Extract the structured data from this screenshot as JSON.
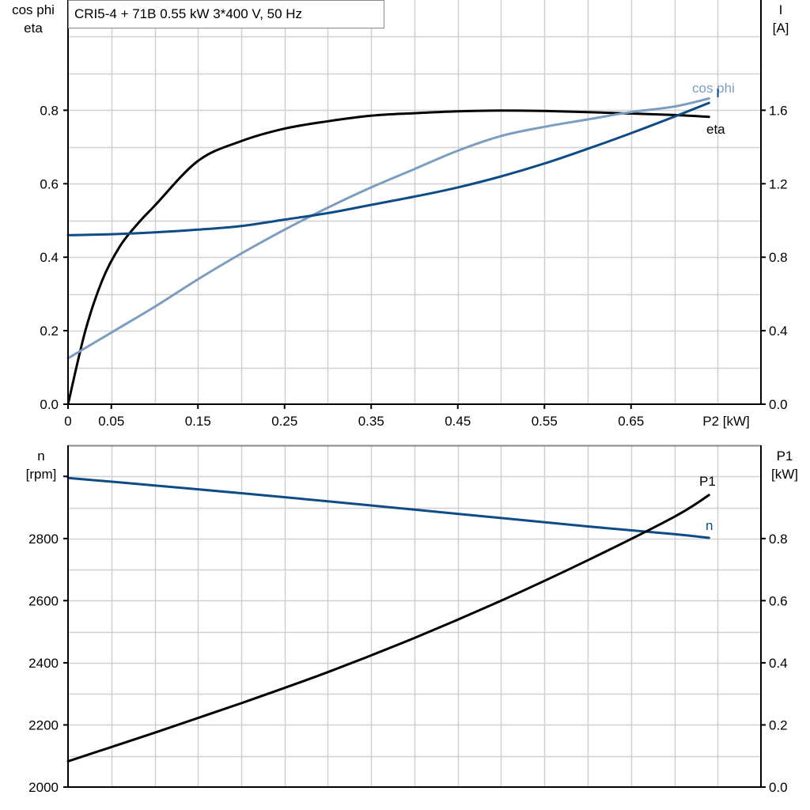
{
  "title": "CRI5-4 + 71B   0.55 kW   3*400 V, 50 Hz",
  "colors": {
    "eta": "#000000",
    "cos_phi": "#7a9dc0",
    "current": "#0d4c86",
    "n": "#0d4c86",
    "p1": "#000000",
    "grid": "#d0d0d0"
  },
  "chart_data": [
    {
      "type": "line",
      "xlabel": "P2 [kW]",
      "x_tick_labels": [
        "0",
        "0.05",
        "0.15",
        "0.25",
        "0.35",
        "0.45",
        "0.55",
        "0.65"
      ],
      "x_ticks": [
        0,
        0.05,
        0.15,
        0.25,
        0.35,
        0.45,
        0.55,
        0.65
      ],
      "xlim": [
        0,
        0.8
      ],
      "grid": true,
      "ylabel_left": [
        "cos phi",
        "eta"
      ],
      "ylim_left": [
        0,
        1.1
      ],
      "y_ticks_left": [
        "0.0",
        "0.2",
        "0.4",
        "0.6",
        "0.8"
      ],
      "ylabel_right": [
        "I",
        "[A]"
      ],
      "ylim_right": [
        0,
        2.2
      ],
      "y_ticks_right": [
        "0.0",
        "0.4",
        "0.8",
        "1.2",
        "1.6"
      ],
      "series": [
        {
          "name": "eta",
          "axis": "left",
          "x": [
            0,
            0.02,
            0.04,
            0.06,
            0.08,
            0.1,
            0.15,
            0.2,
            0.25,
            0.3,
            0.35,
            0.4,
            0.45,
            0.5,
            0.55,
            0.6,
            0.65,
            0.7,
            0.74
          ],
          "y": [
            0,
            0.2,
            0.34,
            0.43,
            0.49,
            0.54,
            0.662,
            0.716,
            0.75,
            0.77,
            0.785,
            0.792,
            0.797,
            0.799,
            0.798,
            0.795,
            0.791,
            0.787,
            0.782
          ]
        },
        {
          "name": "cos phi",
          "axis": "left",
          "x": [
            0,
            0.05,
            0.1,
            0.15,
            0.2,
            0.25,
            0.3,
            0.35,
            0.4,
            0.45,
            0.5,
            0.55,
            0.6,
            0.65,
            0.7,
            0.74
          ],
          "y": [
            0.125,
            0.195,
            0.265,
            0.34,
            0.41,
            0.475,
            0.535,
            0.59,
            0.64,
            0.69,
            0.73,
            0.755,
            0.775,
            0.795,
            0.81,
            0.832
          ]
        },
        {
          "name": "I",
          "axis": "right",
          "x": [
            0,
            0.05,
            0.1,
            0.15,
            0.2,
            0.25,
            0.3,
            0.35,
            0.4,
            0.45,
            0.5,
            0.55,
            0.6,
            0.65,
            0.7,
            0.74
          ],
          "y": [
            0.92,
            0.925,
            0.935,
            0.95,
            0.97,
            1.005,
            1.04,
            1.085,
            1.13,
            1.18,
            1.24,
            1.31,
            1.39,
            1.475,
            1.565,
            1.64
          ]
        }
      ]
    },
    {
      "type": "line",
      "xlim": [
        0,
        0.8
      ],
      "grid": true,
      "ylabel_left": [
        "n",
        "[rpm]"
      ],
      "ylim_left": [
        2000,
        3100
      ],
      "y_ticks_left": [
        "2000",
        "2200",
        "2400",
        "2600",
        "2800"
      ],
      "ylabel_right": [
        "P1",
        "[kW]"
      ],
      "ylim_right": [
        0,
        1.1
      ],
      "y_ticks_right": [
        "0.0",
        "0.2",
        "0.4",
        "0.6",
        "0.8"
      ],
      "series": [
        {
          "name": "n",
          "axis": "left",
          "x": [
            0,
            0.1,
            0.2,
            0.3,
            0.4,
            0.5,
            0.6,
            0.7,
            0.74
          ],
          "y": [
            2995,
            2971,
            2946,
            2920,
            2893,
            2866,
            2839,
            2814,
            2802
          ]
        },
        {
          "name": "P1",
          "axis": "right",
          "x": [
            0,
            0.1,
            0.2,
            0.3,
            0.4,
            0.5,
            0.6,
            0.7,
            0.74
          ],
          "y": [
            0.083,
            0.175,
            0.27,
            0.37,
            0.48,
            0.6,
            0.73,
            0.87,
            0.94
          ]
        }
      ]
    }
  ]
}
